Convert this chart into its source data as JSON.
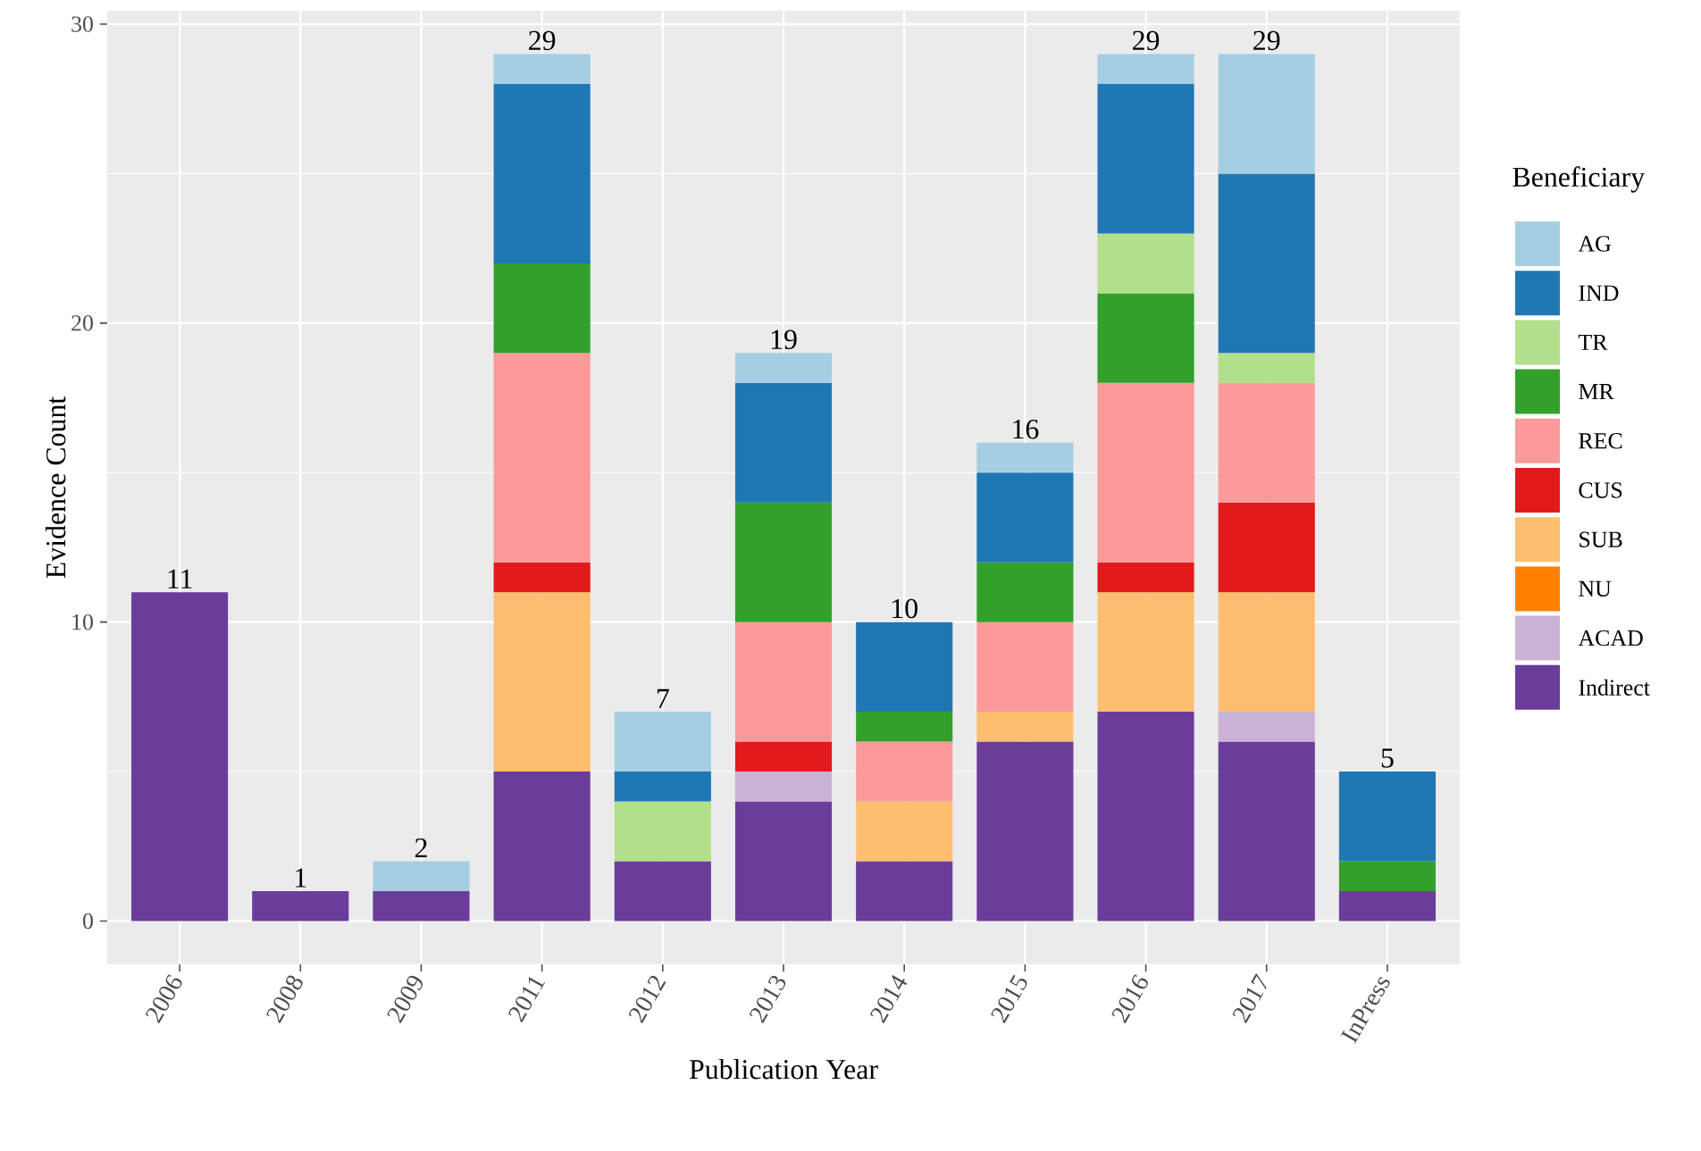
{
  "chart_data": {
    "type": "bar",
    "stacked": true,
    "xlabel": "Publication Year",
    "ylabel": "Evidence Count",
    "legend_title": "Beneficiary",
    "legend": "right",
    "grid": true,
    "categories": [
      "2006",
      "2008",
      "2009",
      "2011",
      "2012",
      "2013",
      "2014",
      "2015",
      "2016",
      "2017",
      "InPress"
    ],
    "series": [
      {
        "name": "Indirect",
        "color": "#6a3d9a",
        "values": [
          11,
          1,
          1,
          5,
          2,
          4,
          2,
          6,
          7,
          6,
          1
        ]
      },
      {
        "name": "ACAD",
        "color": "#cab2d6",
        "values": [
          0,
          0,
          0,
          0,
          0,
          1,
          0,
          0,
          0,
          1,
          0
        ]
      },
      {
        "name": "NU",
        "color": "#ff7f00",
        "values": [
          0,
          0,
          0,
          0,
          0,
          0,
          0,
          0,
          0,
          0,
          0
        ]
      },
      {
        "name": "SUB",
        "color": "#fdbf6f",
        "values": [
          0,
          0,
          0,
          6,
          0,
          0,
          2,
          1,
          4,
          4,
          0
        ]
      },
      {
        "name": "CUS",
        "color": "#e31a1c",
        "values": [
          0,
          0,
          0,
          1,
          0,
          1,
          0,
          0,
          1,
          3,
          0
        ]
      },
      {
        "name": "REC",
        "color": "#fb9a99",
        "values": [
          0,
          0,
          0,
          7,
          0,
          4,
          2,
          3,
          6,
          4,
          0
        ]
      },
      {
        "name": "MR",
        "color": "#33a02c",
        "values": [
          0,
          0,
          0,
          3,
          0,
          4,
          1,
          2,
          3,
          0,
          1
        ]
      },
      {
        "name": "TR",
        "color": "#b2df8a",
        "values": [
          0,
          0,
          0,
          0,
          2,
          0,
          0,
          0,
          2,
          1,
          0
        ]
      },
      {
        "name": "IND",
        "color": "#1f78b4",
        "values": [
          0,
          0,
          0,
          6,
          1,
          4,
          3,
          3,
          5,
          6,
          3
        ]
      },
      {
        "name": "AG",
        "color": "#a6cee3",
        "values": [
          0,
          0,
          1,
          1,
          2,
          1,
          0,
          1,
          1,
          4,
          0
        ]
      }
    ],
    "totals": [
      "11",
      "1",
      "2",
      "29",
      "7",
      "19",
      "10",
      "16",
      "29",
      "29",
      "5"
    ],
    "ylim": [
      -1.45,
      30.45
    ],
    "yticks": [
      0,
      10,
      20,
      30
    ]
  }
}
